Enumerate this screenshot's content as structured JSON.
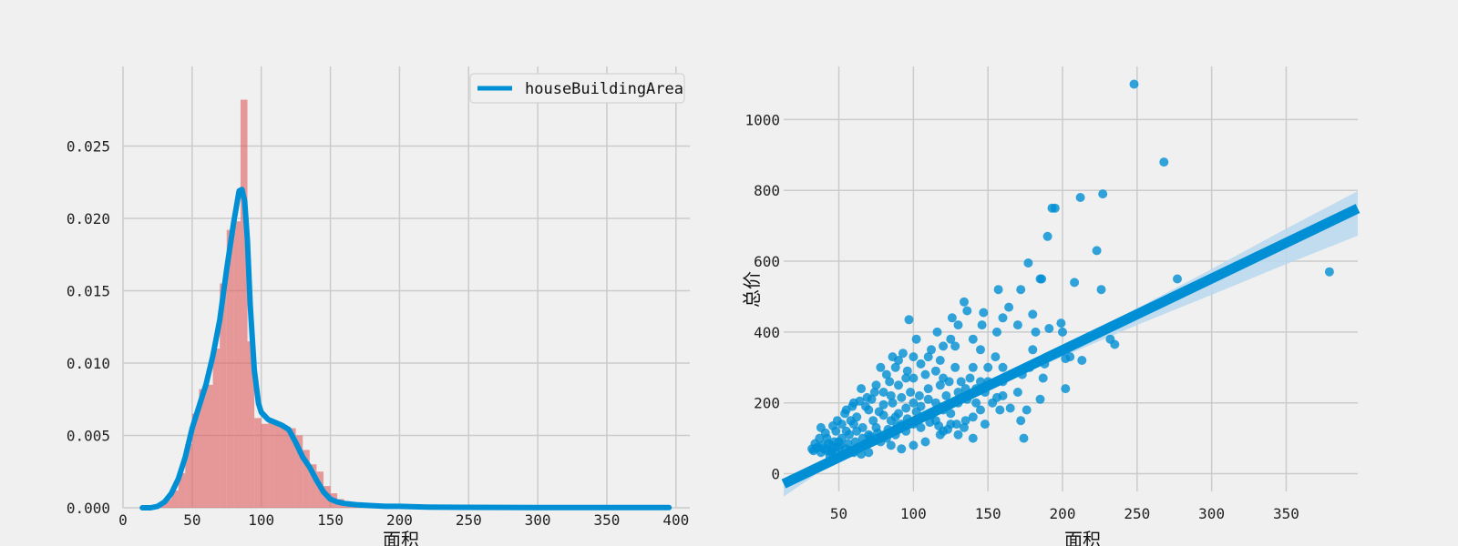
{
  "colors": {
    "background": "#f0f0f0",
    "grid": "#cbcbcb",
    "primary": "#008fd5",
    "hist": "#e05c5c",
    "hist_light": "#9ccbe8",
    "ci": "#b8d8ee"
  },
  "chart_data": [
    {
      "type": "histogram",
      "title": "",
      "xlabel": "面积",
      "ylabel": "",
      "xlim": [
        0,
        410
      ],
      "ylim": [
        0,
        0.0305
      ],
      "xticks": [
        0,
        50,
        100,
        150,
        200,
        250,
        300,
        350,
        400
      ],
      "yticks": [
        0.0,
        0.005,
        0.01,
        0.015,
        0.02,
        0.025
      ],
      "ytick_labels": [
        "0.000",
        "0.005",
        "0.010",
        "0.015",
        "0.020",
        "0.025"
      ],
      "legend": {
        "position": "top-right",
        "entries": [
          "houseBuildingArea"
        ]
      },
      "bin_width": 5,
      "hist_bins": [
        {
          "start": 20,
          "density": 0.0001
        },
        {
          "start": 25,
          "density": 0.0002
        },
        {
          "start": 30,
          "density": 0.0006
        },
        {
          "start": 35,
          "density": 0.0012
        },
        {
          "start": 40,
          "density": 0.0024
        },
        {
          "start": 45,
          "density": 0.0044
        },
        {
          "start": 50,
          "density": 0.0065
        },
        {
          "start": 55,
          "density": 0.0082
        },
        {
          "start": 60,
          "density": 0.0085
        },
        {
          "start": 65,
          "density": 0.011
        },
        {
          "start": 70,
          "density": 0.0155
        },
        {
          "start": 75,
          "density": 0.0192
        },
        {
          "start": 80,
          "density": 0.0198
        },
        {
          "start": 85,
          "density": 0.0282
        },
        {
          "start": 90,
          "density": 0.0115
        },
        {
          "start": 95,
          "density": 0.0062
        },
        {
          "start": 100,
          "density": 0.0058
        },
        {
          "start": 105,
          "density": 0.006
        },
        {
          "start": 110,
          "density": 0.0058
        },
        {
          "start": 115,
          "density": 0.0055
        },
        {
          "start": 120,
          "density": 0.0055
        },
        {
          "start": 125,
          "density": 0.005
        },
        {
          "start": 130,
          "density": 0.004
        },
        {
          "start": 135,
          "density": 0.003
        },
        {
          "start": 140,
          "density": 0.0025
        },
        {
          "start": 145,
          "density": 0.0015
        },
        {
          "start": 150,
          "density": 0.001
        },
        {
          "start": 155,
          "density": 0.0006
        },
        {
          "start": 160,
          "density": 0.0004
        },
        {
          "start": 165,
          "density": 0.0003
        },
        {
          "start": 170,
          "density": 0.0002
        },
        {
          "start": 175,
          "density": 0.0002
        }
      ],
      "kde": {
        "name": "houseBuildingArea",
        "x": [
          14,
          20,
          25,
          30,
          35,
          40,
          45,
          50,
          55,
          60,
          65,
          70,
          75,
          80,
          84,
          86,
          88,
          90,
          92,
          95,
          98,
          100,
          105,
          110,
          115,
          120,
          125,
          130,
          135,
          140,
          145,
          150,
          155,
          160,
          170,
          180,
          190,
          200,
          220,
          250,
          300,
          350,
          395
        ],
        "y": [
          0.0,
          0.0,
          0.0001,
          0.0004,
          0.001,
          0.002,
          0.0035,
          0.0055,
          0.007,
          0.0085,
          0.0105,
          0.013,
          0.0165,
          0.0197,
          0.0219,
          0.022,
          0.0212,
          0.0185,
          0.014,
          0.0095,
          0.0072,
          0.0066,
          0.0061,
          0.0059,
          0.0057,
          0.0054,
          0.0045,
          0.0035,
          0.0028,
          0.0019,
          0.0011,
          0.0006,
          0.0004,
          0.0003,
          0.0002,
          0.00015,
          0.0001,
          0.0001,
          5e-05,
          3e-05,
          2e-05,
          1e-05,
          1e-05
        ]
      }
    },
    {
      "type": "scatter",
      "title": "",
      "xlabel": "面积",
      "ylabel": "总价",
      "xlim": [
        13,
        398
      ],
      "ylim": [
        -50,
        1150
      ],
      "xticks": [
        50,
        100,
        150,
        200,
        250,
        300,
        350
      ],
      "yticks": [
        0,
        200,
        400,
        600,
        800,
        1000
      ],
      "regression": {
        "slope": 2.02,
        "intercept": -55,
        "x_range": [
          13,
          398
        ]
      },
      "confidence_band": {
        "x": [
          13,
          50,
          100,
          150,
          200,
          250,
          300,
          350,
          398
        ],
        "lower": [
          -65,
          42,
          145,
          240,
          330,
          420,
          505,
          592,
          672
        ],
        "upper": [
          -30,
          58,
          155,
          257,
          362,
          467,
          578,
          692,
          798
        ]
      },
      "points": [
        [
          248,
          1100
        ],
        [
          268,
          880
        ],
        [
          227,
          790
        ],
        [
          212,
          780
        ],
        [
          193,
          750
        ],
        [
          195,
          750
        ],
        [
          190,
          670
        ],
        [
          223,
          630
        ],
        [
          177,
          595
        ],
        [
          208,
          540
        ],
        [
          185,
          550
        ],
        [
          186,
          550
        ],
        [
          277,
          550
        ],
        [
          379,
          570
        ],
        [
          226,
          520
        ],
        [
          172,
          520
        ],
        [
          157,
          520
        ],
        [
          134,
          485
        ],
        [
          164,
          470
        ],
        [
          147,
          455
        ],
        [
          180,
          450
        ],
        [
          160,
          440
        ],
        [
          97,
          435
        ],
        [
          170,
          420
        ],
        [
          199,
          425
        ],
        [
          191,
          410
        ],
        [
          200,
          400
        ],
        [
          182,
          400
        ],
        [
          232,
          380
        ],
        [
          235,
          365
        ],
        [
          180,
          350
        ],
        [
          205,
          330
        ],
        [
          213,
          320
        ],
        [
          202,
          325
        ],
        [
          178,
          300
        ],
        [
          188,
          310
        ],
        [
          160,
          300
        ],
        [
          173,
          280
        ],
        [
          187,
          270
        ],
        [
          202,
          240
        ],
        [
          170,
          230
        ],
        [
          160,
          220
        ],
        [
          156,
          215
        ],
        [
          165,
          185
        ],
        [
          176,
          180
        ],
        [
          172,
          150
        ],
        [
          185,
          210
        ],
        [
          174,
          100
        ],
        [
          150,
          260
        ],
        [
          145,
          350
        ],
        [
          140,
          300
        ],
        [
          130,
          420
        ],
        [
          125,
          380
        ],
        [
          120,
          360
        ],
        [
          110,
          330
        ],
        [
          105,
          310
        ],
        [
          90,
          320
        ],
        [
          88,
          300
        ],
        [
          82,
          280
        ],
        [
          78,
          300
        ],
        [
          95,
          270
        ],
        [
          100,
          270
        ],
        [
          115,
          290
        ],
        [
          118,
          250
        ],
        [
          135,
          240
        ],
        [
          142,
          200
        ],
        [
          148,
          140
        ],
        [
          120,
          120
        ],
        [
          130,
          110
        ],
        [
          140,
          100
        ],
        [
          108,
          90
        ],
        [
          100,
          80
        ],
        [
          92,
          70
        ],
        [
          85,
          80
        ],
        [
          70,
          60
        ],
        [
          65,
          55
        ],
        [
          60,
          60
        ],
        [
          55,
          70
        ],
        [
          50,
          75
        ],
        [
          45,
          80
        ],
        [
          40,
          70
        ],
        [
          35,
          72
        ],
        [
          32,
          70
        ],
        [
          38,
          130
        ],
        [
          42,
          100
        ],
        [
          48,
          120
        ],
        [
          52,
          140
        ],
        [
          58,
          150
        ],
        [
          62,
          160
        ],
        [
          68,
          190
        ],
        [
          72,
          210
        ],
        [
          60,
          200
        ],
        [
          55,
          180
        ],
        [
          65,
          240
        ],
        [
          75,
          250
        ],
        [
          80,
          230
        ],
        [
          85,
          220
        ],
        [
          50,
          90
        ],
        [
          45,
          60
        ],
        [
          70,
          110
        ],
        [
          75,
          130
        ],
        [
          85,
          150
        ],
        [
          90,
          170
        ],
        [
          95,
          185
        ],
        [
          100,
          200
        ],
        [
          105,
          190
        ],
        [
          110,
          210
        ],
        [
          115,
          200
        ],
        [
          120,
          180
        ],
        [
          125,
          170
        ],
        [
          130,
          200
        ],
        [
          135,
          150
        ],
        [
          140,
          160
        ],
        [
          145,
          180
        ],
        [
          105,
          130
        ],
        [
          95,
          120
        ],
        [
          88,
          110
        ],
        [
          82,
          100
        ],
        [
          78,
          90
        ],
        [
          72,
          95
        ],
        [
          68,
          85
        ],
        [
          63,
          75
        ],
        [
          58,
          65
        ],
        [
          53,
          55
        ],
        [
          48,
          60
        ],
        [
          44,
          50
        ],
        [
          115,
          150
        ],
        [
          125,
          140
        ],
        [
          118,
          110
        ],
        [
          100,
          140
        ],
        [
          92,
          140
        ],
        [
          88,
          160
        ],
        [
          80,
          165
        ],
        [
          77,
          175
        ],
        [
          73,
          150
        ],
        [
          66,
          130
        ],
        [
          62,
          120
        ],
        [
          57,
          110
        ],
        [
          110,
          240
        ],
        [
          98,
          230
        ],
        [
          92,
          215
        ],
        [
          86,
          200
        ],
        [
          102,
          175
        ],
        [
          112,
          165
        ],
        [
          122,
          220
        ],
        [
          132,
          260
        ],
        [
          138,
          270
        ],
        [
          128,
          300
        ],
        [
          118,
          320
        ],
        [
          108,
          280
        ],
        [
          96,
          290
        ],
        [
          84,
          260
        ],
        [
          74,
          230
        ],
        [
          69,
          215
        ],
        [
          64,
          205
        ],
        [
          59,
          190
        ],
        [
          54,
          170
        ],
        [
          49,
          150
        ],
        [
          46,
          135
        ],
        [
          41,
          115
        ],
        [
          37,
          100
        ],
        [
          34,
          85
        ],
        [
          150,
          300
        ],
        [
          155,
          330
        ],
        [
          145,
          260
        ],
        [
          160,
          260
        ],
        [
          153,
          200
        ],
        [
          158,
          180
        ],
        [
          140,
          380
        ],
        [
          128,
          360
        ],
        [
          112,
          350
        ],
        [
          100,
          330
        ],
        [
          93,
          340
        ],
        [
          86,
          330
        ],
        [
          102,
          380
        ],
        [
          116,
          400
        ],
        [
          126,
          440
        ],
        [
          136,
          460
        ],
        [
          146,
          420
        ],
        [
          156,
          400
        ],
        [
          124,
          260
        ],
        [
          130,
          230
        ],
        [
          136,
          210
        ],
        [
          142,
          240
        ],
        [
          148,
          230
        ],
        [
          104,
          220
        ],
        [
          90,
          250
        ],
        [
          80,
          195
        ],
        [
          70,
          180
        ],
        [
          60,
          140
        ],
        [
          55,
          120
        ],
        [
          52,
          100
        ],
        [
          47,
          90
        ],
        [
          43,
          85
        ],
        [
          39,
          80
        ],
        [
          36,
          75
        ],
        [
          33,
          65
        ],
        [
          106,
          160
        ],
        [
          111,
          145
        ],
        [
          117,
          135
        ],
        [
          123,
          125
        ],
        [
          129,
          140
        ],
        [
          134,
          130
        ],
        [
          96,
          155
        ],
        [
          89,
          135
        ],
        [
          83,
          125
        ],
        [
          76,
          115
        ],
        [
          71,
          105
        ],
        [
          66,
          100
        ],
        [
          61,
          90
        ],
        [
          56,
          85
        ],
        [
          51,
          80
        ],
        [
          46,
          70
        ],
        [
          42,
          65
        ],
        [
          38,
          60
        ],
        [
          120,
          270
        ]
      ]
    }
  ]
}
